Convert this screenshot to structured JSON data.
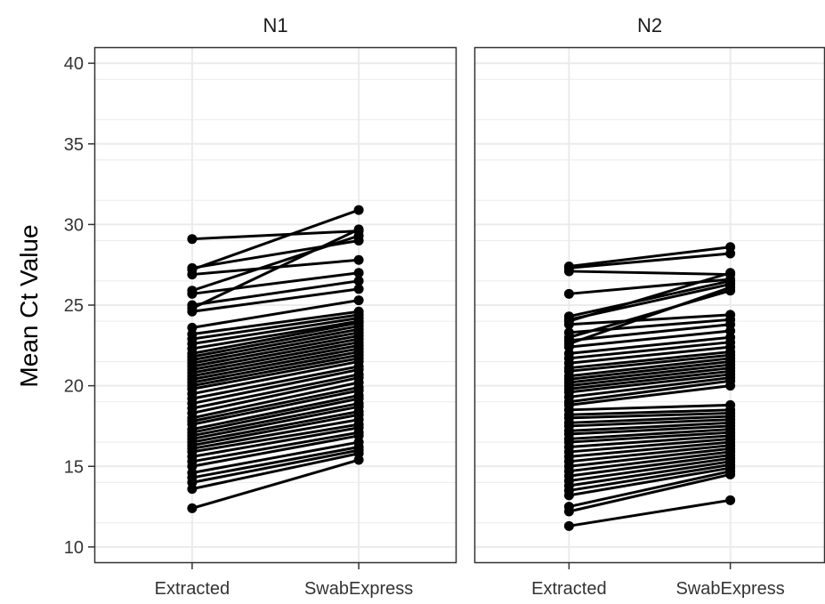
{
  "chart_data": {
    "type": "line",
    "subtype": "paired-dot-plot-faceted",
    "ylabel": "Mean Ct Value",
    "xlabel": "",
    "ylim": [
      9,
      41
    ],
    "yticks": [
      10,
      15,
      20,
      25,
      30,
      35,
      40
    ],
    "categories": [
      "Extracted",
      "SwabExpress"
    ],
    "grid": true,
    "colors": {
      "line": "#000000",
      "point": "#000000",
      "grid": "#ebebeb",
      "border": "#333333"
    },
    "panels": [
      {
        "title": "N1",
        "pairs": [
          [
            12.4,
            15.4
          ],
          [
            13.6,
            15.8
          ],
          [
            14.0,
            16.0
          ],
          [
            14.3,
            16.2
          ],
          [
            14.6,
            16.5
          ],
          [
            15.0,
            16.9
          ],
          [
            15.3,
            17.1
          ],
          [
            15.6,
            17.4
          ],
          [
            15.9,
            17.6
          ],
          [
            16.1,
            17.9
          ],
          [
            16.3,
            18.2
          ],
          [
            16.5,
            18.4
          ],
          [
            16.7,
            18.7
          ],
          [
            16.9,
            18.9
          ],
          [
            17.1,
            19.2
          ],
          [
            17.3,
            19.4
          ],
          [
            17.6,
            19.7
          ],
          [
            17.8,
            19.9
          ],
          [
            18.0,
            20.2
          ],
          [
            18.3,
            20.5
          ],
          [
            18.6,
            20.7
          ],
          [
            18.9,
            21.0
          ],
          [
            19.2,
            21.2
          ],
          [
            19.5,
            21.5
          ],
          [
            19.8,
            21.7
          ],
          [
            20.0,
            21.9
          ],
          [
            20.2,
            22.1
          ],
          [
            20.4,
            22.3
          ],
          [
            20.6,
            22.5
          ],
          [
            20.8,
            22.7
          ],
          [
            21.0,
            22.9
          ],
          [
            21.2,
            23.1
          ],
          [
            21.4,
            23.3
          ],
          [
            21.6,
            23.5
          ],
          [
            21.8,
            23.7
          ],
          [
            22.0,
            23.9
          ],
          [
            22.3,
            24.0
          ],
          [
            22.6,
            24.2
          ],
          [
            22.9,
            24.4
          ],
          [
            23.2,
            24.6
          ],
          [
            23.6,
            25.3
          ],
          [
            24.6,
            26.0
          ],
          [
            25.0,
            26.5
          ],
          [
            25.7,
            27.0
          ],
          [
            26.9,
            27.8
          ],
          [
            27.3,
            29.0
          ],
          [
            25.9,
            29.3
          ],
          [
            29.1,
            29.6
          ],
          [
            24.8,
            29.7
          ],
          [
            27.2,
            30.9
          ]
        ]
      },
      {
        "title": "N2",
        "pairs": [
          [
            11.3,
            12.9
          ],
          [
            12.2,
            14.5
          ],
          [
            12.5,
            14.7
          ],
          [
            13.2,
            14.9
          ],
          [
            13.5,
            15.1
          ],
          [
            13.8,
            15.3
          ],
          [
            14.1,
            15.5
          ],
          [
            14.4,
            15.7
          ],
          [
            14.7,
            15.9
          ],
          [
            15.0,
            16.1
          ],
          [
            15.3,
            16.3
          ],
          [
            15.6,
            16.5
          ],
          [
            15.9,
            16.7
          ],
          [
            16.2,
            16.9
          ],
          [
            16.5,
            17.1
          ],
          [
            16.7,
            17.3
          ],
          [
            17.0,
            17.5
          ],
          [
            17.2,
            17.7
          ],
          [
            17.5,
            17.9
          ],
          [
            17.7,
            18.1
          ],
          [
            18.0,
            18.3
          ],
          [
            18.2,
            18.5
          ],
          [
            18.5,
            18.8
          ],
          [
            18.8,
            20.0
          ],
          [
            19.0,
            20.3
          ],
          [
            19.3,
            20.5
          ],
          [
            19.6,
            20.7
          ],
          [
            19.8,
            20.9
          ],
          [
            20.0,
            21.1
          ],
          [
            20.2,
            21.3
          ],
          [
            20.4,
            21.5
          ],
          [
            20.6,
            21.7
          ],
          [
            20.9,
            21.9
          ],
          [
            21.1,
            22.1
          ],
          [
            21.4,
            22.4
          ],
          [
            21.7,
            22.7
          ],
          [
            22.0,
            23.0
          ],
          [
            22.4,
            23.4
          ],
          [
            22.8,
            23.8
          ],
          [
            23.3,
            24.1
          ],
          [
            23.8,
            24.4
          ],
          [
            24.1,
            26.3
          ],
          [
            24.3,
            26.5
          ],
          [
            25.7,
            26.6
          ],
          [
            27.1,
            26.9
          ],
          [
            24.0,
            27.0
          ],
          [
            22.6,
            26.1
          ],
          [
            27.3,
            28.2
          ],
          [
            27.4,
            28.6
          ],
          [
            23.0,
            25.9
          ]
        ]
      }
    ]
  }
}
